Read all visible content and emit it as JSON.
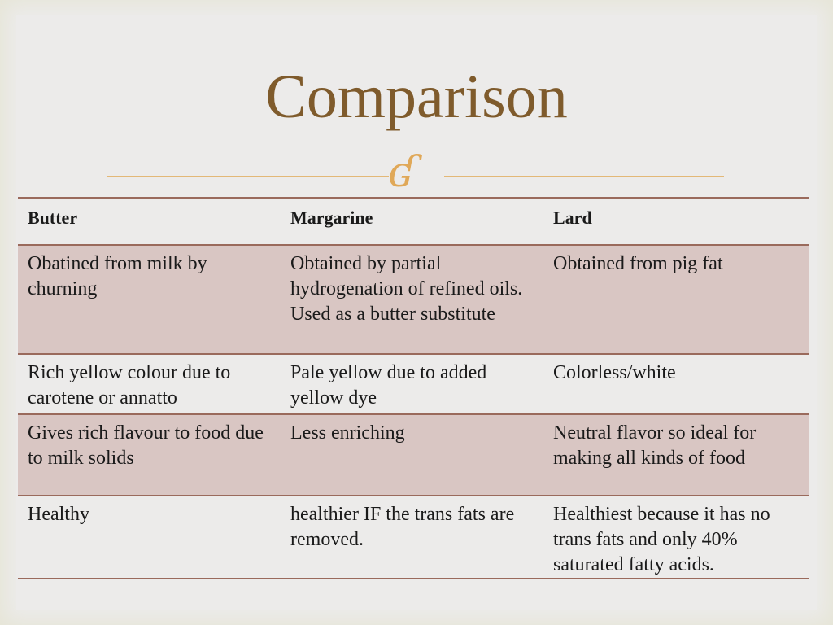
{
  "slide": {
    "title": "Comparison",
    "ornament": "ornament-swirl-icon",
    "accent_color": "#7f5b2c",
    "row_shade_color": "#d9c6c3"
  },
  "table": {
    "headers": [
      "Butter",
      "Margarine",
      "Lard"
    ],
    "rows": [
      [
        "Obatined from milk by churning",
        "Obtained by partial hydrogenation of refined oils. Used as a butter substitute",
        "Obtained from pig fat"
      ],
      [
        "Rich yellow colour due to carotene or annatto",
        "Pale yellow due to added yellow dye",
        "Colorless/white"
      ],
      [
        "Gives rich flavour to food due to milk solids",
        "Less enriching",
        "Neutral flavor so ideal for making all kinds of food"
      ],
      [
        "Healthy",
        "healthier IF the trans fats are removed.",
        "Healthiest because it has no trans fats and only 40% saturated fatty acids."
      ]
    ]
  }
}
